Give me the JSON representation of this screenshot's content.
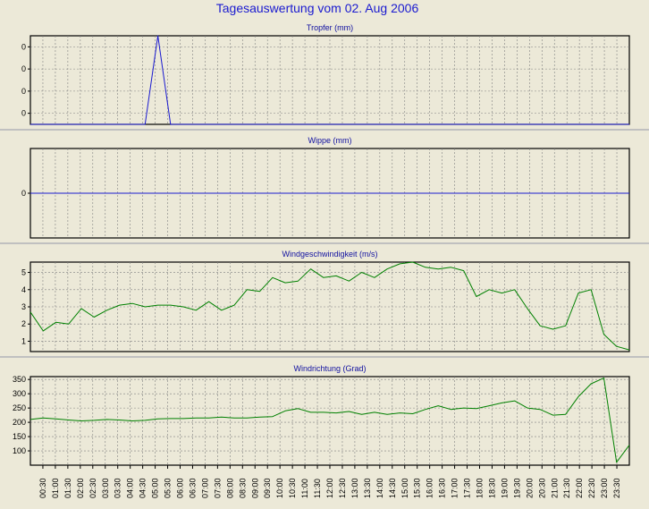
{
  "page_title": "Tagesauswertung vom 02. Aug 2006",
  "colors": {
    "background": "#ece9d8",
    "plot_background": "#ece9d8",
    "title_color": "#1a1ad0",
    "panel_title_color": "#1010a0",
    "rain_line": "#1a1ad0",
    "wind_line": "#008000",
    "grid": "#808080",
    "separator": "#c0c0c0"
  },
  "time_labels": [
    "00:30",
    "01:00",
    "01:30",
    "02:00",
    "02:30",
    "03:00",
    "03:30",
    "04:00",
    "04:30",
    "05:00",
    "05:30",
    "06:00",
    "06:30",
    "07:00",
    "07:30",
    "08:00",
    "08:30",
    "09:00",
    "09:30",
    "10:00",
    "10:30",
    "11:00",
    "11:30",
    "12:00",
    "12:30",
    "13:00",
    "13:30",
    "14:00",
    "14:30",
    "15:00",
    "15:30",
    "16:00",
    "16:30",
    "17:00",
    "17:30",
    "18:00",
    "18:30",
    "19:00",
    "19:30",
    "20:00",
    "20:30",
    "21:00",
    "21:30",
    "22:00",
    "22:30",
    "23:00",
    "23:30"
  ],
  "chart_data": [
    {
      "type": "line",
      "title": "Tropfer (mm)",
      "ytick_labels": [
        "0",
        "0",
        "0",
        "0"
      ],
      "ylim": [
        0,
        4
      ],
      "grid": true,
      "series": [
        {
          "values": [
            0,
            0,
            0,
            0,
            0,
            0,
            0,
            0,
            0,
            0,
            4,
            0,
            0,
            0,
            0,
            0,
            0,
            0,
            0,
            0,
            0,
            0,
            0,
            0,
            0,
            0,
            0,
            0,
            0,
            0,
            0,
            0,
            0,
            0,
            0,
            0,
            0,
            0,
            0,
            0,
            0,
            0,
            0,
            0,
            0,
            0,
            0,
            0
          ]
        }
      ]
    },
    {
      "type": "line",
      "title": "Wippe (mm)",
      "ytick_labels": [
        "0"
      ],
      "ylim": [
        -1,
        1
      ],
      "grid": true,
      "series": [
        {
          "values": [
            0,
            0,
            0,
            0,
            0,
            0,
            0,
            0,
            0,
            0,
            0,
            0,
            0,
            0,
            0,
            0,
            0,
            0,
            0,
            0,
            0,
            0,
            0,
            0,
            0,
            0,
            0,
            0,
            0,
            0,
            0,
            0,
            0,
            0,
            0,
            0,
            0,
            0,
            0,
            0,
            0,
            0,
            0,
            0,
            0,
            0,
            0,
            0
          ]
        }
      ]
    },
    {
      "type": "line",
      "title": "Windgeschwindigkeit (m/s)",
      "ytick_labels": [
        "1",
        "2",
        "3",
        "4",
        "5"
      ],
      "yticks": [
        1,
        2,
        3,
        4,
        5
      ],
      "ylim": [
        0.4,
        5.6
      ],
      "grid": true,
      "series": [
        {
          "values": [
            2.7,
            1.6,
            2.1,
            2.0,
            2.9,
            2.4,
            2.8,
            3.1,
            3.2,
            3.0,
            3.1,
            3.1,
            3.0,
            2.8,
            3.3,
            2.8,
            3.1,
            4.0,
            3.9,
            4.7,
            4.4,
            4.5,
            5.2,
            4.7,
            4.8,
            4.5,
            5.0,
            4.7,
            5.2,
            5.5,
            5.6,
            5.3,
            5.2,
            5.3,
            5.1,
            3.6,
            4.0,
            3.8,
            4.0,
            2.9,
            1.9,
            1.7,
            1.9,
            3.8,
            4.0,
            1.4,
            0.7,
            0.5
          ]
        }
      ]
    },
    {
      "type": "line",
      "title": "Windrichtung (Grad)",
      "ytick_labels": [
        "100",
        "150",
        "200",
        "250",
        "300",
        "350"
      ],
      "yticks": [
        100,
        150,
        200,
        250,
        300,
        350
      ],
      "ylim": [
        50,
        360
      ],
      "grid": true,
      "series": [
        {
          "values": [
            210,
            215,
            212,
            208,
            205,
            207,
            210,
            208,
            205,
            207,
            212,
            213,
            213,
            215,
            215,
            218,
            215,
            215,
            218,
            220,
            240,
            248,
            235,
            235,
            233,
            238,
            228,
            235,
            228,
            233,
            230,
            245,
            258,
            245,
            250,
            248,
            258,
            268,
            275,
            250,
            245,
            225,
            228,
            290,
            335,
            355,
            60,
            120
          ]
        }
      ]
    }
  ]
}
